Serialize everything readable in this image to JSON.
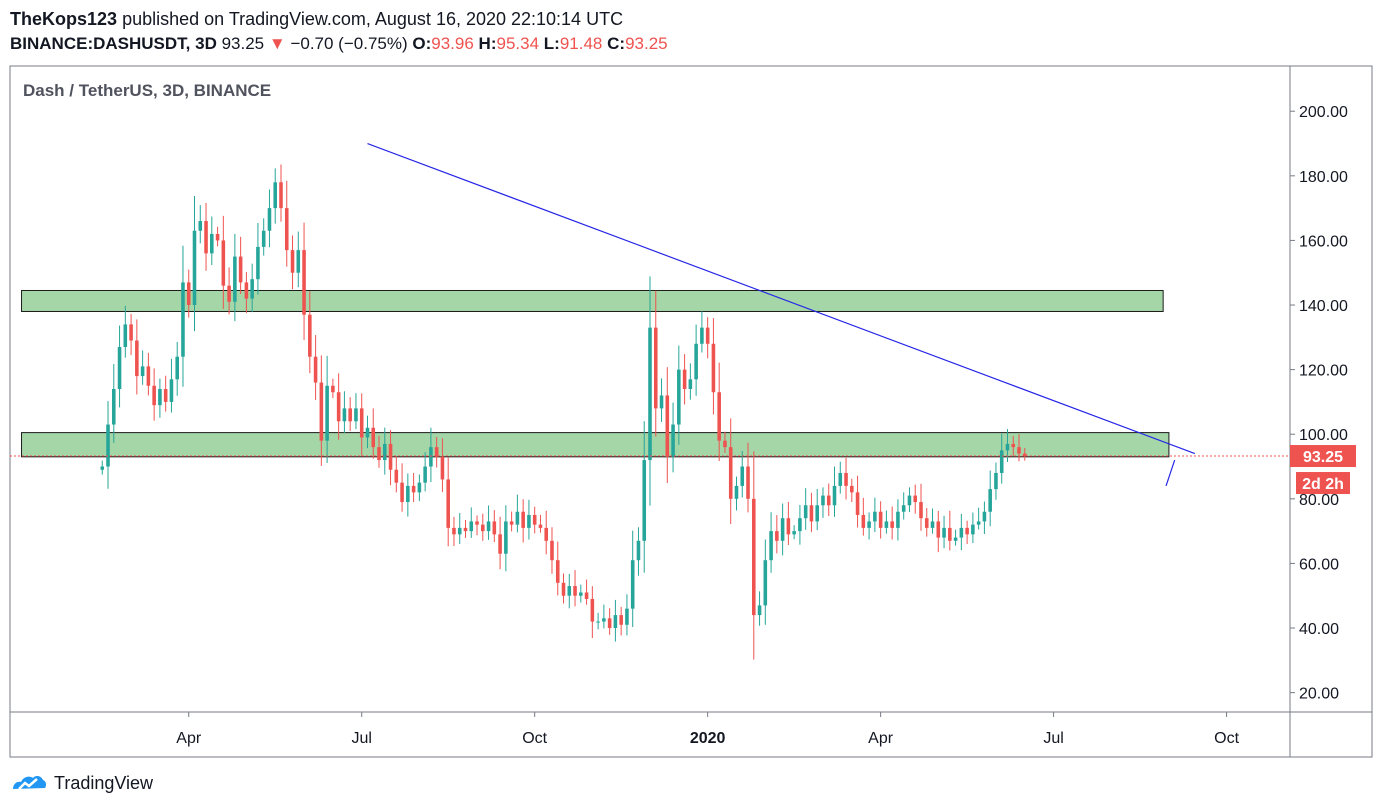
{
  "header": {
    "author": "TheKops123",
    "published_text": "published on TradingView.com, August 16, 2020 22:10:14 UTC",
    "symbol": "BINANCE:DASHUSDT, 3D",
    "last": "93.25",
    "change_arrow": "▼",
    "change": "−0.70 (−0.75%)",
    "open_label": "O:",
    "open": "93.96",
    "high_label": "H:",
    "high": "95.34",
    "low_label": "L:",
    "low": "91.48",
    "close_label": "C:",
    "close": "93.25"
  },
  "colors": {
    "up": "#26a69a",
    "down": "#ef5350",
    "zone_fill": "#a5d6a7",
    "trendline": "#2727e6"
  },
  "chart_data": {
    "type": "candlestick",
    "title": "Dash / TetherUS, 3D, BINANCE",
    "ylim": [
      14,
      214
    ],
    "y_ticks": [
      20,
      40,
      60,
      80,
      100,
      120,
      140,
      160,
      180,
      200
    ],
    "x_ticks": [
      {
        "label": "Apr",
        "bar": 15
      },
      {
        "label": "Jul",
        "bar": 45
      },
      {
        "label": "Oct",
        "bar": 75
      },
      {
        "label": "2020",
        "bar": 105
      },
      {
        "label": "Apr",
        "bar": 135
      },
      {
        "label": "Jul",
        "bar": 165
      },
      {
        "label": "Oct",
        "bar": 195
      }
    ],
    "bar_count_range": [
      -16,
      206
    ],
    "last_price_label": "93.25",
    "countdown_label": "2d 2h",
    "zones": [
      {
        "name": "resistance",
        "bar_start": -14,
        "bar_end": 184,
        "low": 138,
        "high": 144.5
      },
      {
        "name": "support",
        "bar_start": -14,
        "bar_end": 185,
        "low": 93,
        "high": 100.5
      }
    ],
    "trendlines": [
      {
        "name": "main-downtrend",
        "from": {
          "bar": 46,
          "price": 190
        },
        "to": {
          "bar": 189.5,
          "price": 94
        }
      },
      {
        "name": "short-uptrend",
        "from": {
          "bar": 184.5,
          "price": 84
        },
        "to": {
          "bar": 186,
          "price": 92
        }
      }
    ],
    "closes": [
      90,
      103,
      114,
      127,
      134,
      129,
      118,
      121,
      115,
      109,
      114,
      110,
      117,
      124,
      147,
      140,
      163,
      166,
      156,
      162,
      160,
      146,
      141,
      155,
      147,
      142,
      148,
      158,
      163,
      170,
      178,
      170,
      157,
      150,
      157,
      137,
      124,
      116,
      98,
      115,
      113,
      104,
      108,
      104,
      108,
      99,
      102,
      96,
      92,
      97,
      89,
      85,
      79,
      84,
      82,
      85,
      90,
      96,
      93,
      86,
      71,
      69,
      71,
      70,
      73,
      72,
      70,
      73,
      69,
      63,
      73,
      72,
      76,
      71,
      75,
      72,
      71,
      67,
      61,
      54,
      50,
      53,
      50,
      51,
      49,
      42,
      42,
      43,
      40,
      44,
      41,
      46,
      61,
      67,
      92,
      133,
      108,
      112,
      93,
      103,
      120,
      114,
      117,
      128,
      133,
      128,
      113,
      98,
      96,
      80,
      84,
      90,
      80,
      44,
      47,
      61,
      70,
      67,
      74,
      69,
      70,
      74,
      78,
      73,
      78,
      81,
      78,
      84,
      88,
      84,
      82,
      75,
      71,
      73,
      76,
      71,
      73,
      71,
      76,
      78,
      81,
      79,
      74,
      71,
      73,
      68,
      71,
      67,
      68,
      71,
      69,
      72,
      73,
      76,
      83,
      88,
      95,
      97,
      96,
      94,
      93.25
    ],
    "open_first": 89
  },
  "footer": {
    "brand": "TradingView"
  }
}
